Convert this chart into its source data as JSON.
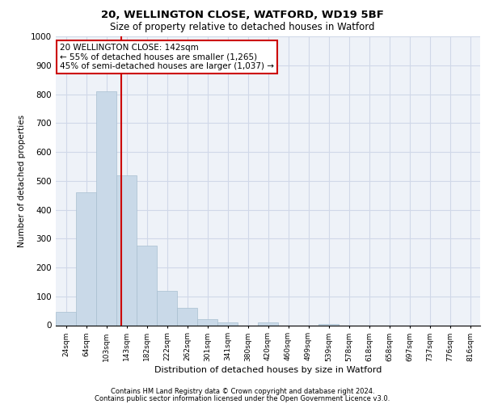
{
  "title1": "20, WELLINGTON CLOSE, WATFORD, WD19 5BF",
  "title2": "Size of property relative to detached houses in Watford",
  "xlabel": "Distribution of detached houses by size in Watford",
  "ylabel": "Number of detached properties",
  "categories": [
    "24sqm",
    "64sqm",
    "103sqm",
    "143sqm",
    "182sqm",
    "222sqm",
    "262sqm",
    "301sqm",
    "341sqm",
    "380sqm",
    "420sqm",
    "460sqm",
    "499sqm",
    "539sqm",
    "578sqm",
    "618sqm",
    "658sqm",
    "697sqm",
    "737sqm",
    "776sqm",
    "816sqm"
  ],
  "values": [
    45,
    460,
    810,
    520,
    275,
    120,
    60,
    20,
    10,
    0,
    10,
    0,
    0,
    5,
    0,
    0,
    0,
    0,
    0,
    0,
    0
  ],
  "bar_color": "#c9d9e8",
  "bar_edge_color": "#a8bfd0",
  "grid_color": "#d0d8e8",
  "bg_color": "#eef2f8",
  "annotation_box_color": "#cc0000",
  "vline_color": "#cc0000",
  "vline_x": 2.75,
  "annotation_text": "20 WELLINGTON CLOSE: 142sqm\n← 55% of detached houses are smaller (1,265)\n45% of semi-detached houses are larger (1,037) →",
  "footer1": "Contains HM Land Registry data © Crown copyright and database right 2024.",
  "footer2": "Contains public sector information licensed under the Open Government Licence v3.0.",
  "ylim": [
    0,
    1000
  ],
  "yticks": [
    0,
    100,
    200,
    300,
    400,
    500,
    600,
    700,
    800,
    900,
    1000
  ]
}
